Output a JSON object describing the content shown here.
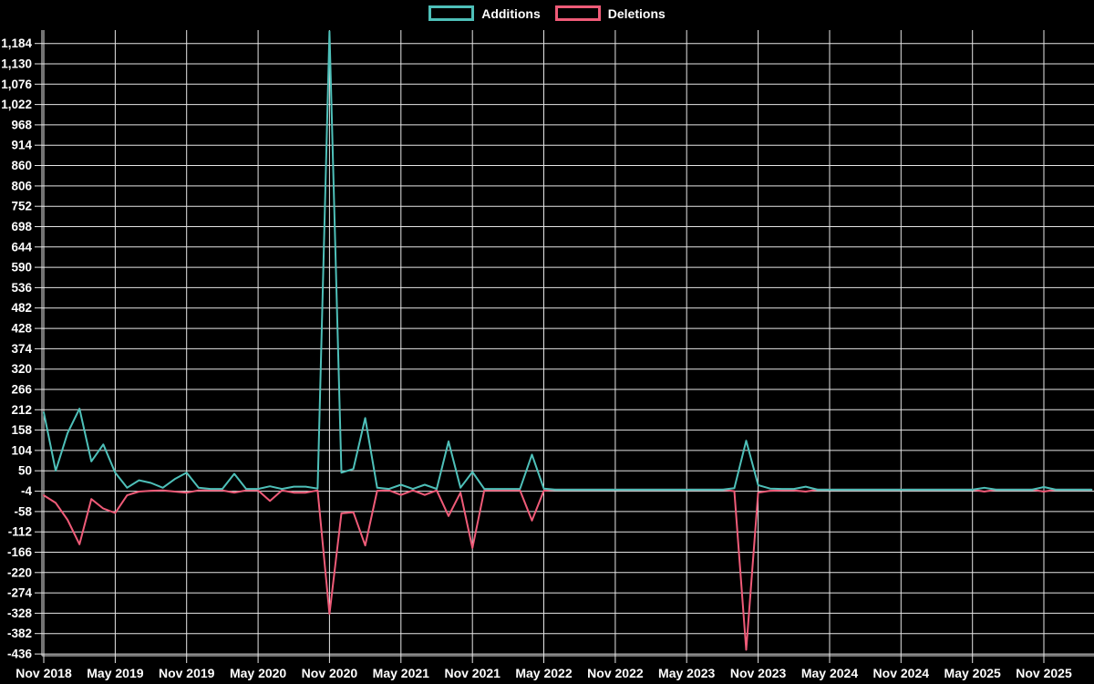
{
  "legend": {
    "items": [
      {
        "label": "Additions",
        "color": "#4ec0b9"
      },
      {
        "label": "Deletions",
        "color": "#ef5b78"
      }
    ]
  },
  "chart_data": {
    "type": "line",
    "title": "",
    "xlabel": "",
    "ylabel": "",
    "layout": {
      "background": "#000000",
      "grid": true,
      "grid_color": "#e6e6e6",
      "text_color": "#ffffff",
      "legend_position": "top-center"
    },
    "x_axis": {
      "tick_every_months": 6,
      "tick_labels": [
        "Nov 2018",
        "May 2019",
        "Nov 2019",
        "May 2020",
        "Nov 2020",
        "May 2021",
        "Nov 2021",
        "May 2022",
        "Nov 2022",
        "May 2023",
        "Nov 2023",
        "May 2024",
        "Nov 2024",
        "May 2025",
        "Nov 2025"
      ]
    },
    "y_axis": {
      "min": -436,
      "max": 1184,
      "step": 54,
      "tick_labels": [
        "-436",
        "-382",
        "-328",
        "-274",
        "-220",
        "-166",
        "-112",
        "-58",
        "-4",
        "50",
        "104",
        "158",
        "212",
        "266",
        "320",
        "374",
        "428",
        "482",
        "536",
        "590",
        "644",
        "698",
        "752",
        "806",
        "860",
        "914",
        "968",
        "1,022",
        "1,076",
        "1,130",
        "1,184"
      ]
    },
    "categories": [
      "Nov 2018",
      "Dec 2018",
      "Jan 2019",
      "Feb 2019",
      "Mar 2019",
      "Apr 2019",
      "May 2019",
      "Jun 2019",
      "Jul 2019",
      "Aug 2019",
      "Sep 2019",
      "Oct 2019",
      "Nov 2019",
      "Dec 2019",
      "Jan 2020",
      "Feb 2020",
      "Mar 2020",
      "Apr 2020",
      "May 2020",
      "Jun 2020",
      "Jul 2020",
      "Aug 2020",
      "Sep 2020",
      "Oct 2020",
      "Nov 2020",
      "Dec 2020",
      "Jan 2021",
      "Feb 2021",
      "Mar 2021",
      "Apr 2021",
      "May 2021",
      "Jun 2021",
      "Jul 2021",
      "Aug 2021",
      "Sep 2021",
      "Oct 2021",
      "Nov 2021",
      "Dec 2021",
      "Jan 2022",
      "Feb 2022",
      "Mar 2022",
      "Apr 2022",
      "May 2022",
      "Jun 2022",
      "Jul 2022",
      "Aug 2022",
      "Sep 2022",
      "Oct 2022",
      "Nov 2022",
      "Dec 2022",
      "Jan 2023",
      "Feb 2023",
      "Mar 2023",
      "Apr 2023",
      "May 2023",
      "Jun 2023",
      "Jul 2023",
      "Aug 2023",
      "Sep 2023",
      "Oct 2023",
      "Nov 2023",
      "Dec 2023",
      "Jan 2024",
      "Feb 2024",
      "Mar 2024",
      "Apr 2024",
      "May 2024",
      "Jun 2024",
      "Jul 2024",
      "Aug 2024",
      "Sep 2024",
      "Oct 2024",
      "Nov 2024",
      "Dec 2024",
      "Jan 2025",
      "Feb 2025",
      "Mar 2025",
      "Apr 2025",
      "May 2025",
      "Jun 2025",
      "Jul 2025",
      "Aug 2025",
      "Sep 2025",
      "Oct 2025",
      "Nov 2025",
      "Dec 2025",
      "Jan 2026",
      "Feb 2026",
      "Mar 2026"
    ],
    "series": [
      {
        "name": "Additions",
        "color": "#4ec0b9",
        "values": [
          205,
          50,
          150,
          215,
          75,
          120,
          45,
          5,
          25,
          18,
          5,
          28,
          45,
          5,
          2,
          2,
          42,
          2,
          2,
          9,
          2,
          8,
          8,
          3,
          1216,
          45,
          55,
          190,
          5,
          2,
          13,
          2,
          13,
          2,
          128,
          5,
          47,
          2,
          2,
          2,
          2,
          93,
          3,
          0,
          0,
          0,
          0,
          0,
          0,
          0,
          0,
          0,
          0,
          0,
          0,
          0,
          0,
          0,
          4,
          130,
          12,
          3,
          2,
          2,
          8,
          0,
          0,
          0,
          0,
          0,
          0,
          0,
          0,
          0,
          0,
          0,
          0,
          0,
          0,
          5,
          0,
          0,
          0,
          0,
          7,
          0,
          0,
          0,
          0
        ]
      },
      {
        "name": "Deletions",
        "color": "#ef5b78",
        "values": [
          -15,
          -35,
          -80,
          -145,
          -25,
          -50,
          -62,
          -15,
          -5,
          -3,
          -2,
          -5,
          -8,
          -2,
          -2,
          -2,
          -8,
          -2,
          -2,
          -30,
          -2,
          -8,
          -8,
          -2,
          -330,
          -63,
          -60,
          -148,
          -3,
          -2,
          -14,
          -2,
          -14,
          -2,
          -70,
          -8,
          -155,
          -2,
          -2,
          -2,
          -2,
          -82,
          -3,
          0,
          0,
          0,
          0,
          0,
          0,
          0,
          0,
          0,
          0,
          0,
          0,
          0,
          0,
          0,
          -4,
          -425,
          -8,
          -3,
          -2,
          -2,
          -5,
          0,
          0,
          0,
          0,
          0,
          0,
          0,
          0,
          0,
          0,
          0,
          0,
          0,
          0,
          -5,
          0,
          0,
          0,
          0,
          -5,
          0,
          0,
          0,
          0
        ]
      }
    ]
  }
}
